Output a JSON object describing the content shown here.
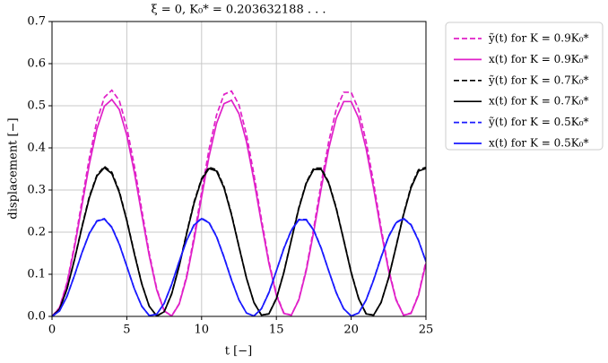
{
  "chart_data": {
    "type": "line",
    "title": "ξ = 0,    K₀* = 0.203632188 . . .",
    "x_label": "t    [−]",
    "y_label": "displacement    [−]",
    "x": [
      0,
      0.5,
      1,
      1.5,
      2,
      2.5,
      3,
      3.5,
      4,
      4.5,
      5,
      5.5,
      6,
      6.5,
      7,
      7.5,
      8,
      8.5,
      9,
      9.5,
      10,
      10.5,
      11,
      11.5,
      12,
      12.5,
      13,
      13.5,
      14,
      14.5,
      15,
      15.5,
      16,
      16.5,
      17,
      17.5,
      18,
      18.5,
      19,
      19.5,
      20,
      20.5,
      21,
      21.5,
      22,
      22.5,
      23,
      23.5,
      24,
      24.5,
      25
    ],
    "series": [
      {
        "name": "ỹ(t) for K = 0.9K₀*",
        "color": "#e020c8",
        "dashed": true,
        "values": [
          0,
          0.021,
          0.08,
          0.169,
          0.274,
          0.377,
          0.464,
          0.52,
          0.537,
          0.512,
          0.449,
          0.358,
          0.253,
          0.15,
          0.066,
          0.013,
          0.001,
          0.03,
          0.096,
          0.19,
          0.295,
          0.397,
          0.478,
          0.527,
          0.535,
          0.502,
          0.432,
          0.337,
          0.231,
          0.131,
          0.053,
          0.008,
          0.003,
          0.04,
          0.113,
          0.21,
          0.317,
          0.415,
          0.491,
          0.532,
          0.532,
          0.491,
          0.415,
          0.317,
          0.21,
          0.113,
          0.041,
          0.003,
          0.008,
          0.052,
          0.131
        ]
      },
      {
        "name": "x(t) for K = 0.9K₀*",
        "color": "#e020c8",
        "dashed": false,
        "values": [
          0,
          0.02,
          0.077,
          0.163,
          0.263,
          0.362,
          0.445,
          0.499,
          0.515,
          0.491,
          0.43,
          0.343,
          0.242,
          0.144,
          0.063,
          0.013,
          0.001,
          0.029,
          0.092,
          0.182,
          0.283,
          0.38,
          0.458,
          0.505,
          0.513,
          0.481,
          0.415,
          0.323,
          0.222,
          0.126,
          0.05,
          0.007,
          0.003,
          0.039,
          0.109,
          0.202,
          0.304,
          0.398,
          0.47,
          0.51,
          0.51,
          0.471,
          0.398,
          0.304,
          0.202,
          0.109,
          0.039,
          0.003,
          0.007,
          0.05,
          0.126
        ]
      },
      {
        "name": "ỹ(t) for K = 0.7K₀*",
        "color": "#000000",
        "dashed": true,
        "values": [
          0,
          0.017,
          0.065,
          0.135,
          0.213,
          0.285,
          0.335,
          0.356,
          0.342,
          0.297,
          0.229,
          0.151,
          0.078,
          0.024,
          0.001,
          0.011,
          0.054,
          0.12,
          0.198,
          0.272,
          0.327,
          0.354,
          0.348,
          0.308,
          0.243,
          0.166,
          0.091,
          0.033,
          0.003,
          0.006,
          0.043,
          0.105,
          0.182,
          0.258,
          0.318,
          0.352,
          0.352,
          0.318,
          0.258,
          0.182,
          0.105,
          0.043,
          0.006,
          0.003,
          0.033,
          0.091,
          0.166,
          0.243,
          0.308,
          0.348,
          0.354
        ]
      },
      {
        "name": "x(t) for K = 0.7K₀*",
        "color": "#000000",
        "dashed": false,
        "values": [
          0,
          0.017,
          0.065,
          0.134,
          0.211,
          0.282,
          0.333,
          0.353,
          0.339,
          0.294,
          0.227,
          0.149,
          0.077,
          0.024,
          0.001,
          0.011,
          0.053,
          0.119,
          0.196,
          0.269,
          0.325,
          0.351,
          0.345,
          0.305,
          0.241,
          0.165,
          0.091,
          0.033,
          0.003,
          0.006,
          0.042,
          0.104,
          0.181,
          0.256,
          0.316,
          0.349,
          0.349,
          0.316,
          0.256,
          0.181,
          0.104,
          0.042,
          0.006,
          0.003,
          0.033,
          0.091,
          0.165,
          0.241,
          0.305,
          0.345,
          0.351
        ]
      },
      {
        "name": "ỹ(t) for K = 0.5K₀*",
        "color": "#1a1aff",
        "dashed": true,
        "values": [
          0,
          0.013,
          0.048,
          0.097,
          0.151,
          0.198,
          0.227,
          0.232,
          0.212,
          0.172,
          0.119,
          0.066,
          0.024,
          0.002,
          0.005,
          0.031,
          0.076,
          0.13,
          0.181,
          0.218,
          0.233,
          0.223,
          0.19,
          0.141,
          0.087,
          0.039,
          0.008,
          0.001,
          0.018,
          0.057,
          0.108,
          0.162,
          0.205,
          0.23,
          0.23,
          0.205,
          0.162,
          0.108,
          0.057,
          0.018,
          0.001,
          0.008,
          0.039,
          0.087,
          0.141,
          0.19,
          0.223,
          0.233,
          0.218,
          0.181,
          0.13
        ]
      },
      {
        "name": "x(t) for K = 0.5K₀*",
        "color": "#1a1aff",
        "dashed": false,
        "values": [
          0,
          0.013,
          0.047,
          0.097,
          0.151,
          0.197,
          0.226,
          0.231,
          0.211,
          0.171,
          0.119,
          0.066,
          0.024,
          0.002,
          0.005,
          0.031,
          0.076,
          0.13,
          0.18,
          0.217,
          0.232,
          0.222,
          0.189,
          0.14,
          0.086,
          0.039,
          0.008,
          0.001,
          0.018,
          0.056,
          0.108,
          0.161,
          0.204,
          0.229,
          0.229,
          0.204,
          0.161,
          0.108,
          0.056,
          0.018,
          0.001,
          0.008,
          0.039,
          0.086,
          0.14,
          0.189,
          0.222,
          0.232,
          0.217,
          0.18,
          0.13
        ]
      }
    ],
    "xlim": [
      0,
      25
    ],
    "xticks": [
      0,
      5,
      10,
      15,
      20,
      25
    ],
    "ylim": [
      0,
      0.7
    ],
    "yticks": [
      {
        "value": 0,
        "label": "0.0"
      },
      0.1,
      0.2,
      0.3,
      0.4,
      0.5,
      0.6,
      0.7
    ],
    "grid": true,
    "legend": "outside-right"
  }
}
